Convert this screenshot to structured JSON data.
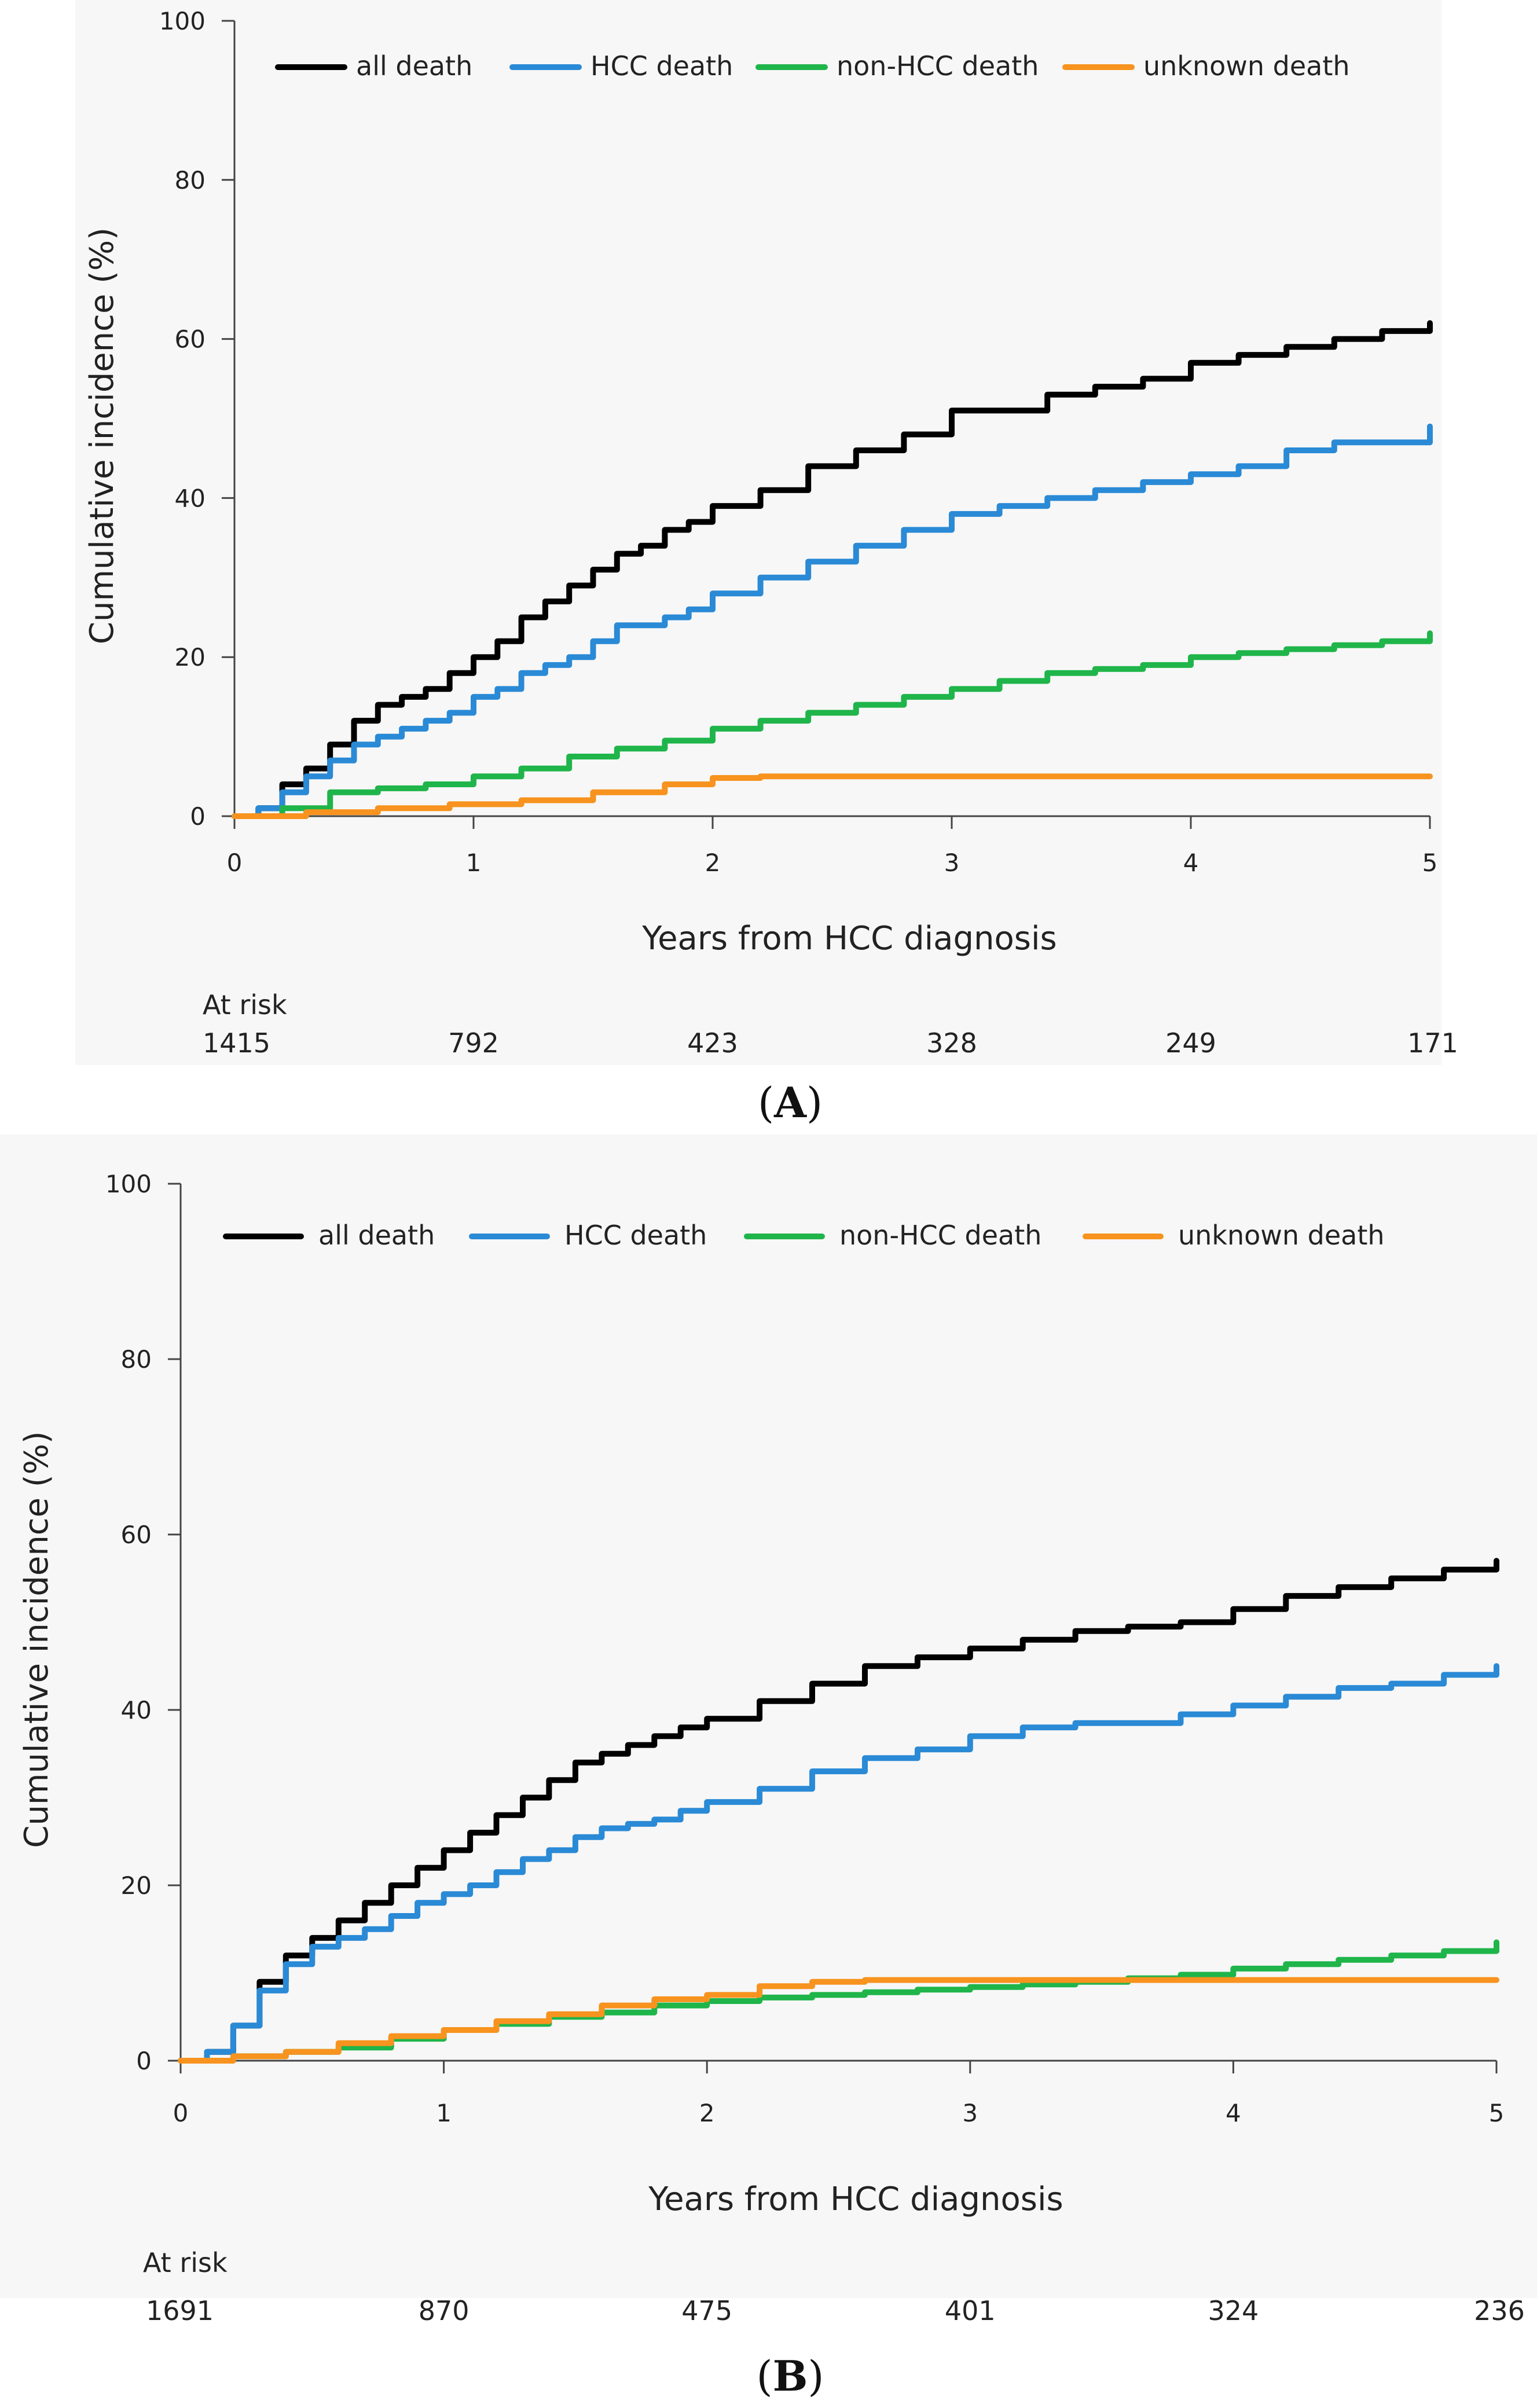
{
  "chart_data": [
    {
      "type": "line",
      "panel_label": "A",
      "xlabel": "Years from HCC diagnosis",
      "ylabel": "Cumulative incidence (%)",
      "xlim": [
        0,
        5
      ],
      "ylim": [
        0,
        100
      ],
      "x_ticks": [
        "0",
        "1",
        "2",
        "3",
        "4",
        "5"
      ],
      "y_ticks": [
        "0",
        "20",
        "40",
        "60",
        "80",
        "100"
      ],
      "legend_position": "top",
      "at_risk_label": "At risk",
      "at_risk": [
        "1415",
        "792",
        "423",
        "328",
        "249",
        "171"
      ],
      "series": [
        {
          "name": "all death",
          "color": "#000000",
          "points": [
            [
              0,
              0
            ],
            [
              0.1,
              1
            ],
            [
              0.2,
              4
            ],
            [
              0.3,
              6
            ],
            [
              0.4,
              9
            ],
            [
              0.5,
              12
            ],
            [
              0.6,
              14
            ],
            [
              0.7,
              15
            ],
            [
              0.8,
              16
            ],
            [
              0.9,
              18
            ],
            [
              1.0,
              20
            ],
            [
              1.1,
              22
            ],
            [
              1.2,
              25
            ],
            [
              1.3,
              27
            ],
            [
              1.4,
              29
            ],
            [
              1.5,
              31
            ],
            [
              1.6,
              33
            ],
            [
              1.7,
              34
            ],
            [
              1.8,
              36
            ],
            [
              1.9,
              37
            ],
            [
              2.0,
              39
            ],
            [
              2.2,
              41
            ],
            [
              2.4,
              44
            ],
            [
              2.6,
              46
            ],
            [
              2.8,
              48
            ],
            [
              3.0,
              51
            ],
            [
              3.2,
              51
            ],
            [
              3.4,
              53
            ],
            [
              3.6,
              54
            ],
            [
              3.8,
              55
            ],
            [
              4.0,
              57
            ],
            [
              4.2,
              58
            ],
            [
              4.4,
              59
            ],
            [
              4.6,
              60
            ],
            [
              4.8,
              61
            ],
            [
              5.0,
              62
            ]
          ]
        },
        {
          "name": "HCC death",
          "color": "#2a8ad6",
          "points": [
            [
              0,
              0
            ],
            [
              0.1,
              1
            ],
            [
              0.2,
              3
            ],
            [
              0.3,
              5
            ],
            [
              0.4,
              7
            ],
            [
              0.5,
              9
            ],
            [
              0.6,
              10
            ],
            [
              0.7,
              11
            ],
            [
              0.8,
              12
            ],
            [
              0.9,
              13
            ],
            [
              1.0,
              15
            ],
            [
              1.1,
              16
            ],
            [
              1.2,
              18
            ],
            [
              1.3,
              19
            ],
            [
              1.4,
              20
            ],
            [
              1.5,
              22
            ],
            [
              1.6,
              24
            ],
            [
              1.7,
              24
            ],
            [
              1.8,
              25
            ],
            [
              1.9,
              26
            ],
            [
              2.0,
              28
            ],
            [
              2.2,
              30
            ],
            [
              2.4,
              32
            ],
            [
              2.6,
              34
            ],
            [
              2.8,
              36
            ],
            [
              3.0,
              38
            ],
            [
              3.2,
              39
            ],
            [
              3.4,
              40
            ],
            [
              3.6,
              41
            ],
            [
              3.8,
              42
            ],
            [
              4.0,
              43
            ],
            [
              4.2,
              44
            ],
            [
              4.4,
              46
            ],
            [
              4.6,
              47
            ],
            [
              4.8,
              47
            ],
            [
              5.0,
              49
            ]
          ]
        },
        {
          "name": "non-HCC death",
          "color": "#1fb54a",
          "points": [
            [
              0,
              0
            ],
            [
              0.2,
              1
            ],
            [
              0.4,
              3
            ],
            [
              0.6,
              3.5
            ],
            [
              0.8,
              4
            ],
            [
              1.0,
              5
            ],
            [
              1.2,
              6
            ],
            [
              1.4,
              7.5
            ],
            [
              1.6,
              8.5
            ],
            [
              1.8,
              9.5
            ],
            [
              2.0,
              11
            ],
            [
              2.2,
              12
            ],
            [
              2.4,
              13
            ],
            [
              2.6,
              14
            ],
            [
              2.8,
              15
            ],
            [
              3.0,
              16
            ],
            [
              3.2,
              17
            ],
            [
              3.4,
              18
            ],
            [
              3.6,
              18.5
            ],
            [
              3.8,
              19
            ],
            [
              4.0,
              20
            ],
            [
              4.2,
              20.5
            ],
            [
              4.4,
              21
            ],
            [
              4.6,
              21.5
            ],
            [
              4.8,
              22
            ],
            [
              5.0,
              23
            ]
          ]
        },
        {
          "name": "unknown death",
          "color": "#f7931e",
          "points": [
            [
              0,
              0
            ],
            [
              0.3,
              0.5
            ],
            [
              0.6,
              1
            ],
            [
              0.9,
              1.5
            ],
            [
              1.2,
              2
            ],
            [
              1.5,
              3
            ],
            [
              1.8,
              4
            ],
            [
              2.0,
              4.8
            ],
            [
              2.2,
              5
            ],
            [
              3.0,
              5
            ],
            [
              4.0,
              5
            ],
            [
              5.0,
              5
            ]
          ]
        }
      ]
    },
    {
      "type": "line",
      "panel_label": "B",
      "xlabel": "Years from HCC diagnosis",
      "ylabel": "Cumulative incidence (%)",
      "xlim": [
        0,
        5
      ],
      "ylim": [
        0,
        100
      ],
      "x_ticks": [
        "0",
        "1",
        "2",
        "3",
        "4",
        "5"
      ],
      "y_ticks": [
        "0",
        "20",
        "40",
        "60",
        "80",
        "100"
      ],
      "legend_position": "top",
      "at_risk_label": "At risk",
      "at_risk": [
        "1691",
        "870",
        "475",
        "401",
        "324",
        "236"
      ],
      "series": [
        {
          "name": "all death",
          "color": "#000000",
          "points": [
            [
              0,
              0
            ],
            [
              0.1,
              1
            ],
            [
              0.2,
              4
            ],
            [
              0.3,
              9
            ],
            [
              0.4,
              12
            ],
            [
              0.5,
              14
            ],
            [
              0.6,
              16
            ],
            [
              0.7,
              18
            ],
            [
              0.8,
              20
            ],
            [
              0.9,
              22
            ],
            [
              1.0,
              24
            ],
            [
              1.1,
              26
            ],
            [
              1.2,
              28
            ],
            [
              1.3,
              30
            ],
            [
              1.4,
              32
            ],
            [
              1.5,
              34
            ],
            [
              1.6,
              35
            ],
            [
              1.7,
              36
            ],
            [
              1.8,
              37
            ],
            [
              1.9,
              38
            ],
            [
              2.0,
              39
            ],
            [
              2.2,
              41
            ],
            [
              2.4,
              43
            ],
            [
              2.6,
              45
            ],
            [
              2.8,
              46
            ],
            [
              3.0,
              47
            ],
            [
              3.2,
              48
            ],
            [
              3.4,
              49
            ],
            [
              3.6,
              49.5
            ],
            [
              3.8,
              50
            ],
            [
              4.0,
              51.5
            ],
            [
              4.2,
              53
            ],
            [
              4.4,
              54
            ],
            [
              4.6,
              55
            ],
            [
              4.8,
              56
            ],
            [
              5.0,
              57
            ]
          ]
        },
        {
          "name": "HCC death",
          "color": "#2a8ad6",
          "points": [
            [
              0,
              0
            ],
            [
              0.1,
              1
            ],
            [
              0.2,
              4
            ],
            [
              0.3,
              8
            ],
            [
              0.4,
              11
            ],
            [
              0.5,
              13
            ],
            [
              0.6,
              14
            ],
            [
              0.7,
              15
            ],
            [
              0.8,
              16.5
            ],
            [
              0.9,
              18
            ],
            [
              1.0,
              19
            ],
            [
              1.1,
              20
            ],
            [
              1.2,
              21.5
            ],
            [
              1.3,
              23
            ],
            [
              1.4,
              24
            ],
            [
              1.5,
              25.5
            ],
            [
              1.6,
              26.5
            ],
            [
              1.7,
              27
            ],
            [
              1.8,
              27.5
            ],
            [
              1.9,
              28.5
            ],
            [
              2.0,
              29.5
            ],
            [
              2.2,
              31
            ],
            [
              2.4,
              33
            ],
            [
              2.6,
              34.5
            ],
            [
              2.8,
              35.5
            ],
            [
              3.0,
              37
            ],
            [
              3.2,
              38
            ],
            [
              3.4,
              38.5
            ],
            [
              3.6,
              38.5
            ],
            [
              3.8,
              39.5
            ],
            [
              4.0,
              40.5
            ],
            [
              4.2,
              41.5
            ],
            [
              4.4,
              42.5
            ],
            [
              4.6,
              43
            ],
            [
              4.8,
              44
            ],
            [
              5.0,
              45
            ]
          ]
        },
        {
          "name": "non-HCC death",
          "color": "#1fb54a",
          "points": [
            [
              0,
              0
            ],
            [
              0.2,
              0.5
            ],
            [
              0.4,
              1
            ],
            [
              0.6,
              1.5
            ],
            [
              0.8,
              2.5
            ],
            [
              1.0,
              3.5
            ],
            [
              1.2,
              4.2
            ],
            [
              1.4,
              5
            ],
            [
              1.6,
              5.5
            ],
            [
              1.8,
              6.3
            ],
            [
              2.0,
              6.8
            ],
            [
              2.2,
              7.2
            ],
            [
              2.4,
              7.5
            ],
            [
              2.6,
              7.8
            ],
            [
              2.8,
              8.1
            ],
            [
              3.0,
              8.4
            ],
            [
              3.2,
              8.7
            ],
            [
              3.4,
              9
            ],
            [
              3.6,
              9.4
            ],
            [
              3.8,
              9.8
            ],
            [
              4.0,
              10.5
            ],
            [
              4.2,
              11
            ],
            [
              4.4,
              11.5
            ],
            [
              4.6,
              12
            ],
            [
              4.8,
              12.5
            ],
            [
              5.0,
              13.5
            ]
          ]
        },
        {
          "name": "unknown death",
          "color": "#f7931e",
          "points": [
            [
              0,
              0
            ],
            [
              0.2,
              0.5
            ],
            [
              0.4,
              1
            ],
            [
              0.6,
              2
            ],
            [
              0.8,
              2.8
            ],
            [
              1.0,
              3.5
            ],
            [
              1.2,
              4.5
            ],
            [
              1.4,
              5.3
            ],
            [
              1.6,
              6.3
            ],
            [
              1.8,
              7
            ],
            [
              2.0,
              7.5
            ],
            [
              2.2,
              8.5
            ],
            [
              2.4,
              9
            ],
            [
              2.6,
              9.2
            ],
            [
              3.0,
              9.2
            ],
            [
              4.0,
              9.2
            ],
            [
              5.0,
              9.2
            ]
          ]
        }
      ]
    }
  ]
}
